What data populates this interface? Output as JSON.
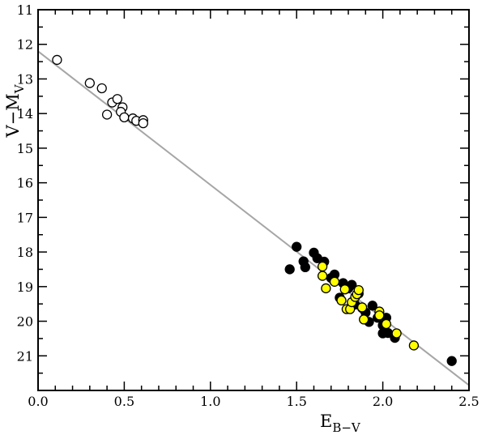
{
  "chart_data": {
    "type": "scatter",
    "xlabel": {
      "main": "E",
      "sub": "B−V"
    },
    "ylabel": {
      "main": "V−M",
      "sub": "V"
    },
    "xlim": [
      0.0,
      2.5
    ],
    "ylim": [
      22,
      11
    ],
    "y_inverted": true,
    "x_ticks": [
      0.0,
      0.5,
      1.0,
      1.5,
      2.0,
      2.5
    ],
    "x_tick_labels": [
      "0.0",
      "0.5",
      "1.0",
      "1.5",
      "2.0",
      "2.5"
    ],
    "y_ticks": [
      11,
      12,
      13,
      14,
      15,
      16,
      17,
      18,
      19,
      20,
      21
    ],
    "y_tick_labels": [
      "11",
      "12",
      "13",
      "14",
      "15",
      "16",
      "17",
      "18",
      "19",
      "20",
      "21"
    ],
    "grid": false,
    "line": {
      "x": [
        0.0,
        2.5
      ],
      "y": [
        12.2,
        21.85
      ],
      "color": "#a6a6a6"
    },
    "series": [
      {
        "marker": "open-circle",
        "face": "#ffffff",
        "edge": "#000000",
        "points": [
          [
            0.11,
            12.45
          ],
          [
            0.3,
            13.12
          ],
          [
            0.37,
            13.27
          ],
          [
            0.43,
            13.68
          ],
          [
            0.46,
            13.58
          ],
          [
            0.49,
            13.82
          ],
          [
            0.48,
            13.95
          ],
          [
            0.4,
            14.03
          ],
          [
            0.5,
            14.11
          ],
          [
            0.55,
            14.14
          ],
          [
            0.57,
            14.21
          ],
          [
            0.61,
            14.19
          ],
          [
            0.61,
            14.28
          ]
        ]
      },
      {
        "marker": "filled-circle",
        "face": "#000000",
        "edge": "#000000",
        "points": [
          [
            1.46,
            18.5
          ],
          [
            1.5,
            17.85
          ],
          [
            1.54,
            18.27
          ],
          [
            1.55,
            18.44
          ],
          [
            1.6,
            18.02
          ],
          [
            1.62,
            18.18
          ],
          [
            1.66,
            18.28
          ],
          [
            1.7,
            18.75
          ],
          [
            1.72,
            18.65
          ],
          [
            1.75,
            19.32
          ],
          [
            1.77,
            18.9
          ],
          [
            1.8,
            19.05
          ],
          [
            1.82,
            18.95
          ],
          [
            1.84,
            19.52
          ],
          [
            1.86,
            19.2
          ],
          [
            1.88,
            19.62
          ],
          [
            1.9,
            19.75
          ],
          [
            1.92,
            20.02
          ],
          [
            1.94,
            19.55
          ],
          [
            1.97,
            19.9
          ],
          [
            2.0,
            20.12
          ],
          [
            2.0,
            20.35
          ],
          [
            2.02,
            19.9
          ],
          [
            2.03,
            20.34
          ],
          [
            2.07,
            20.48
          ],
          [
            2.4,
            21.15
          ]
        ]
      },
      {
        "marker": "yellow-circle",
        "face": "#ffff00",
        "edge": "#000000",
        "points": [
          [
            1.65,
            18.42
          ],
          [
            1.65,
            18.69
          ],
          [
            1.67,
            19.05
          ],
          [
            1.72,
            18.86
          ],
          [
            1.76,
            19.4
          ],
          [
            1.78,
            19.08
          ],
          [
            1.79,
            19.65
          ],
          [
            1.81,
            19.65
          ],
          [
            1.82,
            19.45
          ],
          [
            1.84,
            19.3
          ],
          [
            1.85,
            19.22
          ],
          [
            1.86,
            19.1
          ],
          [
            1.88,
            19.6
          ],
          [
            1.89,
            19.95
          ],
          [
            1.98,
            19.72
          ],
          [
            1.98,
            19.83
          ],
          [
            2.02,
            20.08
          ],
          [
            2.08,
            20.35
          ],
          [
            2.18,
            20.7
          ]
        ]
      }
    ]
  }
}
